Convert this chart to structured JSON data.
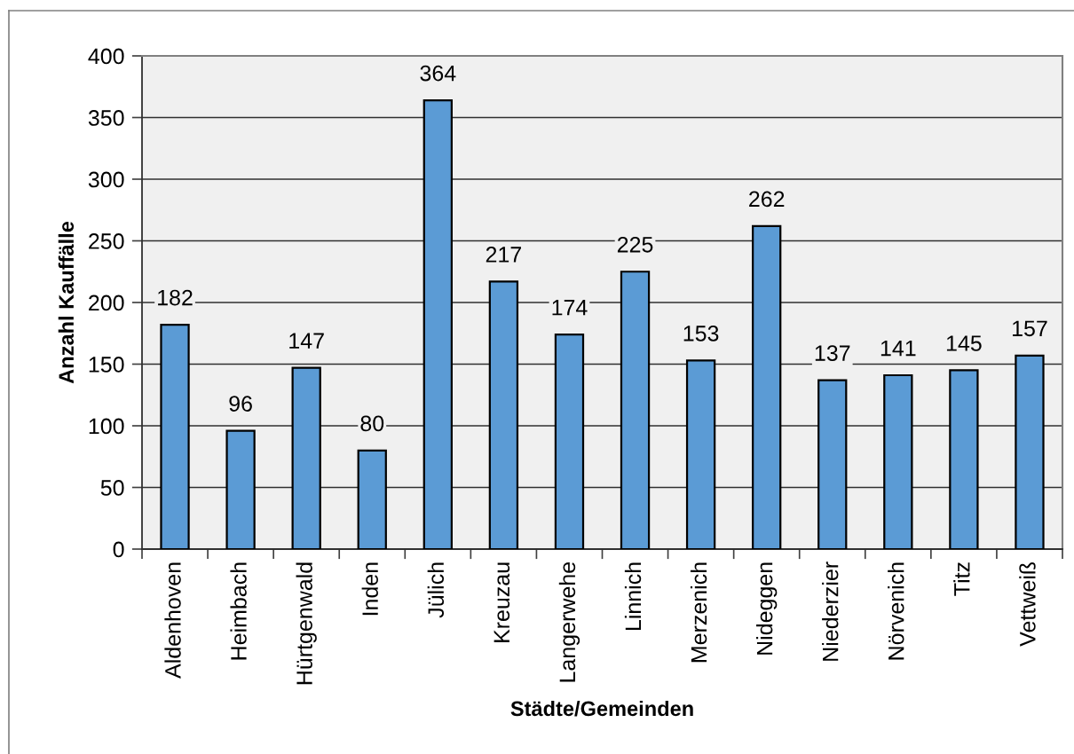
{
  "chart_data": {
    "type": "bar",
    "categories": [
      "Aldenhoven",
      "Heimbach",
      "Hürtgenwald",
      "Inden",
      "Jülich",
      "Kreuzau",
      "Langerwehe",
      "Linnich",
      "Merzenich",
      "Nideggen",
      "Niederzier",
      "Nörvenich",
      "Titz",
      "Vettweiß"
    ],
    "values": [
      182,
      96,
      147,
      80,
      364,
      217,
      174,
      225,
      153,
      262,
      137,
      141,
      145,
      157
    ],
    "color": "#5b9bd5",
    "xlabel": "Städte/Gemeinden",
    "ylabel": "Anzahl Kauffälle",
    "ylim": [
      0,
      400
    ],
    "yticks": [
      0,
      50,
      100,
      150,
      200,
      250,
      300,
      350,
      400
    ],
    "grid": "y",
    "data_labels": true,
    "legend": false
  }
}
